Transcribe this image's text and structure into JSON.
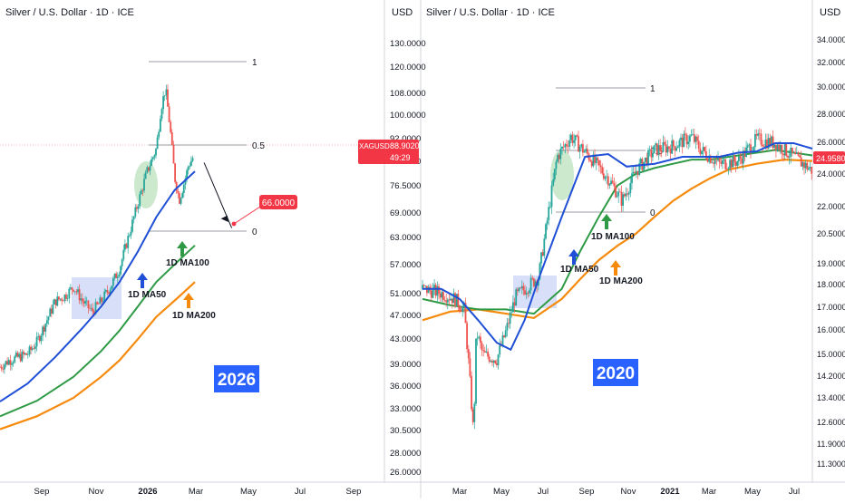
{
  "colors": {
    "ma50": "#1f4fd6",
    "ma100": "#2e9a45",
    "ma200": "#f58a0c",
    "candle_up": "#26a69a",
    "candle_down": "#ef5350",
    "price_badge": "#f23645",
    "year_badge": "#2962ff",
    "highlight_box": "#b8c4f3",
    "highlight_ellipse": "#bfe3c0"
  },
  "chart_data": [
    {
      "type": "candlestick",
      "title": "Silver / U.S. Dollar · 1D · ICE",
      "currency": "USD",
      "y_scale": "log",
      "ylim": [
        25,
        140
      ],
      "y_ticks": [
        "130.0000",
        "120.0000",
        "108.0000",
        "100.0000",
        "92.0000",
        "84.0000",
        "76.5000",
        "69.0000",
        "63.0000",
        "57.0000",
        "51.0000",
        "47.0000",
        "43.0000",
        "39.0000",
        "36.0000",
        "33.0000",
        "30.5000",
        "28.0000",
        "26.0000"
      ],
      "x_ticks": [
        "Sep",
        "Nov",
        "2026",
        "Mar",
        "May",
        "Jul",
        "Sep"
      ],
      "price_tag": {
        "symbol": "XAGUSD",
        "price": "88.9020",
        "countdown": "49:29"
      },
      "target_tag": "66.0000",
      "fib_labels": [
        "1",
        "0.5",
        "0"
      ],
      "ma_labels": [
        "1D MA50",
        "1D MA100",
        "1D MA200"
      ],
      "year_badge": "2026",
      "price_path": [
        [
          0,
          38.5
        ],
        [
          10,
          39.5
        ],
        [
          20,
          40
        ],
        [
          30,
          40.5
        ],
        [
          40,
          42.5
        ],
        [
          50,
          46
        ],
        [
          60,
          50
        ],
        [
          70,
          51
        ],
        [
          80,
          53
        ],
        [
          90,
          50
        ],
        [
          100,
          48
        ],
        [
          110,
          50
        ],
        [
          120,
          53
        ],
        [
          130,
          57
        ],
        [
          140,
          65
        ],
        [
          150,
          74
        ],
        [
          160,
          84
        ],
        [
          170,
          92
        ],
        [
          175,
          108
        ],
        [
          180,
          117
        ],
        [
          185,
          100
        ],
        [
          190,
          82
        ],
        [
          195,
          75
        ],
        [
          200,
          80
        ],
        [
          205,
          86
        ],
        [
          210,
          88.9
        ]
      ],
      "projection": [
        [
          222,
          87
        ],
        [
          252,
          67
        ]
      ],
      "ma50": [
        [
          0,
          33.5
        ],
        [
          30,
          36
        ],
        [
          60,
          40
        ],
        [
          90,
          45
        ],
        [
          110,
          49
        ],
        [
          130,
          54
        ],
        [
          150,
          61
        ],
        [
          170,
          70
        ],
        [
          190,
          78
        ],
        [
          212,
          84
        ]
      ],
      "ma100": [
        [
          0,
          31.6
        ],
        [
          40,
          33.6
        ],
        [
          80,
          37
        ],
        [
          110,
          41
        ],
        [
          130,
          44.5
        ],
        [
          150,
          49
        ],
        [
          170,
          54
        ],
        [
          195,
          59
        ],
        [
          212,
          62.5
        ]
      ],
      "ma200": [
        [
          0,
          30
        ],
        [
          40,
          31.6
        ],
        [
          80,
          34
        ],
        [
          110,
          37
        ],
        [
          130,
          39.5
        ],
        [
          150,
          43
        ],
        [
          170,
          47
        ],
        [
          195,
          51
        ],
        [
          212,
          54
        ]
      ]
    },
    {
      "type": "candlestick",
      "title": "Silver / U.S. Dollar · 1D · ICE",
      "currency": "USD",
      "y_scale": "log",
      "ylim": [
        11,
        36
      ],
      "y_ticks": [
        "34.0000",
        "32.0000",
        "30.0000",
        "28.0000",
        "26.0000",
        "24.0000",
        "22.0000",
        "20.5000",
        "19.0000",
        "18.0000",
        "17.0000",
        "16.0000",
        "15.0000",
        "14.2000",
        "13.4000",
        "12.6000",
        "11.9000",
        "11.3000"
      ],
      "x_ticks": [
        "Mar",
        "May",
        "Jul",
        "Sep",
        "Nov",
        "2021",
        "Mar",
        "May",
        "Jul"
      ],
      "price_tag": "24.9580",
      "fib_labels": [
        "1",
        "0.5",
        "0"
      ],
      "ma_labels": [
        "1D MA50",
        "1D MA100",
        "1D MA200"
      ],
      "year_badge": "2020",
      "price_path": [
        [
          0,
          18
        ],
        [
          20,
          17.8
        ],
        [
          35,
          17.5
        ],
        [
          45,
          17
        ],
        [
          50,
          14.5
        ],
        [
          55,
          12
        ],
        [
          58,
          16
        ],
        [
          65,
          15
        ],
        [
          80,
          14.8
        ],
        [
          90,
          16
        ],
        [
          100,
          17.6
        ],
        [
          110,
          18
        ],
        [
          125,
          18.6
        ],
        [
          135,
          22
        ],
        [
          145,
          26
        ],
        [
          160,
          27.5
        ],
        [
          180,
          26
        ],
        [
          200,
          24.5
        ],
        [
          215,
          23
        ],
        [
          230,
          25
        ],
        [
          250,
          26.5
        ],
        [
          270,
          26.8
        ],
        [
          290,
          27.5
        ],
        [
          300,
          26.5
        ],
        [
          320,
          25.5
        ],
        [
          340,
          25.7
        ],
        [
          360,
          27.3
        ],
        [
          380,
          27
        ],
        [
          400,
          26
        ],
        [
          420,
          25
        ]
      ],
      "ma50": [
        [
          0,
          18
        ],
        [
          20,
          18
        ],
        [
          40,
          17.5
        ],
        [
          60,
          16.5
        ],
        [
          80,
          15.5
        ],
        [
          95,
          15.2
        ],
        [
          110,
          16.5
        ],
        [
          125,
          18.5
        ],
        [
          150,
          22
        ],
        [
          175,
          26
        ],
        [
          200,
          26.2
        ],
        [
          220,
          25.3
        ],
        [
          250,
          25.5
        ],
        [
          280,
          26
        ],
        [
          300,
          26
        ],
        [
          320,
          26
        ],
        [
          340,
          26.3
        ],
        [
          360,
          26.4
        ],
        [
          380,
          27
        ],
        [
          400,
          27
        ],
        [
          420,
          26.6
        ]
      ],
      "ma100": [
        [
          0,
          17.5
        ],
        [
          30,
          17.2
        ],
        [
          60,
          17
        ],
        [
          90,
          17
        ],
        [
          120,
          16.8
        ],
        [
          150,
          18
        ],
        [
          170,
          20
        ],
        [
          190,
          22
        ],
        [
          210,
          24
        ],
        [
          230,
          24.8
        ],
        [
          250,
          25.2
        ],
        [
          270,
          25.5
        ],
        [
          290,
          25.8
        ],
        [
          310,
          25.8
        ],
        [
          330,
          26
        ],
        [
          350,
          26.2
        ],
        [
          380,
          26.5
        ],
        [
          420,
          26.1
        ]
      ],
      "ma200": [
        [
          0,
          16.5
        ],
        [
          30,
          16.9
        ],
        [
          60,
          17
        ],
        [
          90,
          16.8
        ],
        [
          120,
          16.6
        ],
        [
          150,
          17.5
        ],
        [
          170,
          18.5
        ],
        [
          190,
          19.5
        ],
        [
          210,
          20.3
        ],
        [
          230,
          21
        ],
        [
          250,
          22
        ],
        [
          270,
          23
        ],
        [
          290,
          23.8
        ],
        [
          310,
          24.5
        ],
        [
          330,
          25.1
        ],
        [
          360,
          25.5
        ],
        [
          390,
          25.8
        ],
        [
          420,
          25.7
        ]
      ]
    }
  ]
}
